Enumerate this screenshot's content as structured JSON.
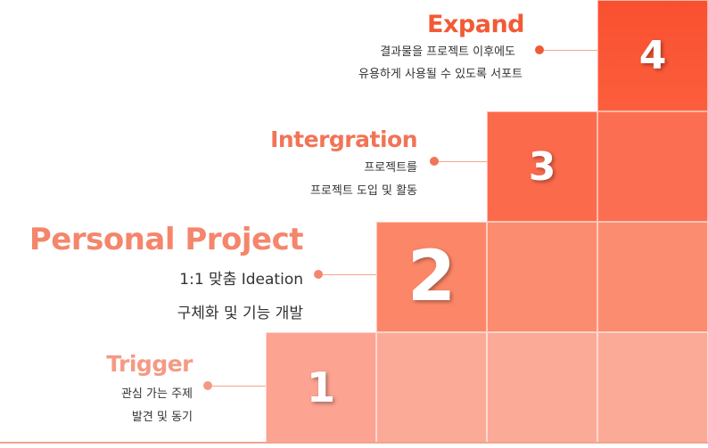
{
  "colors": {
    "step1": "#fca392",
    "step2": "#fc8768",
    "step3": "#fc6a4c",
    "step4": "#fc5531",
    "title_light": "#f49a84",
    "title_mid": "#f27456",
    "title_dark": "#f25a36"
  },
  "steps": [
    {
      "number": "1",
      "title": "Trigger",
      "desc_line1": "관심 가는 주제",
      "desc_line2": "발견 및 동기"
    },
    {
      "number": "2",
      "title": "Personal Project",
      "desc_line1": "1:1 맞춤 Ideation",
      "desc_line2": "구체화 및 기능 개발"
    },
    {
      "number": "3",
      "title": "Intergration",
      "desc_line1": "프로젝트를",
      "desc_line2": "프로젝트 도입 및 활동"
    },
    {
      "number": "4",
      "title": "Expand",
      "desc_line1": "결과물을  프로젝트 이후에도",
      "desc_line2": "유용하게  사용될 수 있도록 서포트"
    }
  ]
}
